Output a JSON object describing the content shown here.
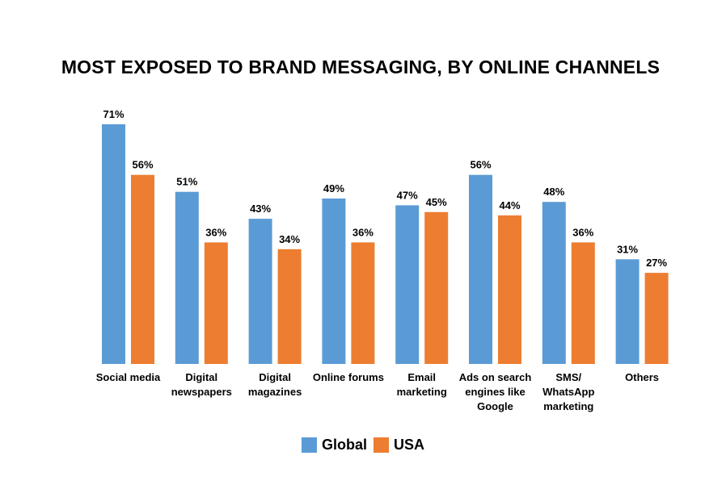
{
  "chart_data": {
    "type": "bar",
    "title": "MOST EXPOSED TO BRAND MESSAGING, BY ONLINE CHANNELS",
    "categories": [
      [
        "Social media"
      ],
      [
        "Digital",
        "newspapers"
      ],
      [
        "Digital",
        "magazines"
      ],
      [
        "Online forums"
      ],
      [
        "Email",
        "marketing"
      ],
      [
        "Ads on search",
        "engines like",
        "Google"
      ],
      [
        "SMS/",
        "WhatsApp",
        "marketing"
      ],
      [
        "Others"
      ]
    ],
    "series": [
      {
        "name": "Global",
        "color": "#5B9BD5",
        "values": [
          71,
          51,
          43,
          49,
          47,
          56,
          48,
          31
        ]
      },
      {
        "name": "USA",
        "color": "#ED7D31",
        "values": [
          56,
          36,
          34,
          36,
          45,
          44,
          36,
          27
        ]
      }
    ],
    "value_suffix": "%",
    "ylim": [
      0,
      75
    ],
    "grid": false,
    "legend_position": "bottom"
  }
}
